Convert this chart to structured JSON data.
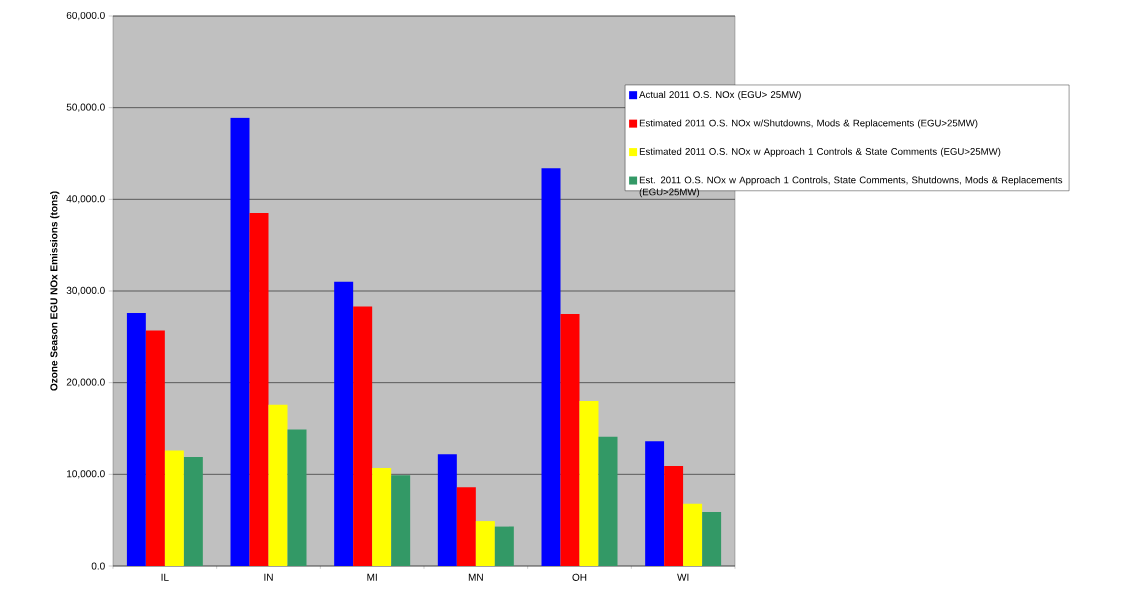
{
  "chart_data": {
    "type": "bar",
    "ylabel": "Ozone Season EGU NOx Emissions (tons)",
    "categories": [
      "IL",
      "IN",
      "MI",
      "MN",
      "OH",
      "WI"
    ],
    "series": [
      {
        "name": "Actual 2011 O.S. NOx  (EGU> 25MW)",
        "color": "#0000ff",
        "values": [
          27600,
          48900,
          31000,
          12200,
          43400,
          13600
        ]
      },
      {
        "name": "Estimated 2011 O.S. NOx w/Shutdowns, Mods & Replacements (EGU>25MW)",
        "color": "#ff0000",
        "values": [
          25700,
          38500,
          28300,
          8600,
          27500,
          10900
        ]
      },
      {
        "name": "Estimated 2011 O.S. NOx w Approach 1 Controls & State Comments (EGU>25MW)",
        "color": "#ffff00",
        "values": [
          12600,
          17600,
          10700,
          4900,
          18000,
          6800
        ]
      },
      {
        "name": "Est. 2011 O.S. NOx w Approach 1 Controls, State Comments, Shutdowns, Mods & Replacements (EGU>25MW)",
        "color": "#339966",
        "values": [
          11900,
          14900,
          9900,
          4300,
          14100,
          5900
        ]
      }
    ],
    "ylim": [
      0,
      60000
    ],
    "yticks": [
      {
        "value": 0,
        "label": "0.0"
      },
      {
        "value": 10000,
        "label": "10,000.0"
      },
      {
        "value": 20000,
        "label": "20,000.0"
      },
      {
        "value": 30000,
        "label": "30,000.0"
      },
      {
        "value": 40000,
        "label": "40,000.0"
      },
      {
        "value": 50000,
        "label": "50,000.0"
      },
      {
        "value": 60000,
        "label": "60,000.0"
      }
    ],
    "grid": "y",
    "legend": "right"
  }
}
